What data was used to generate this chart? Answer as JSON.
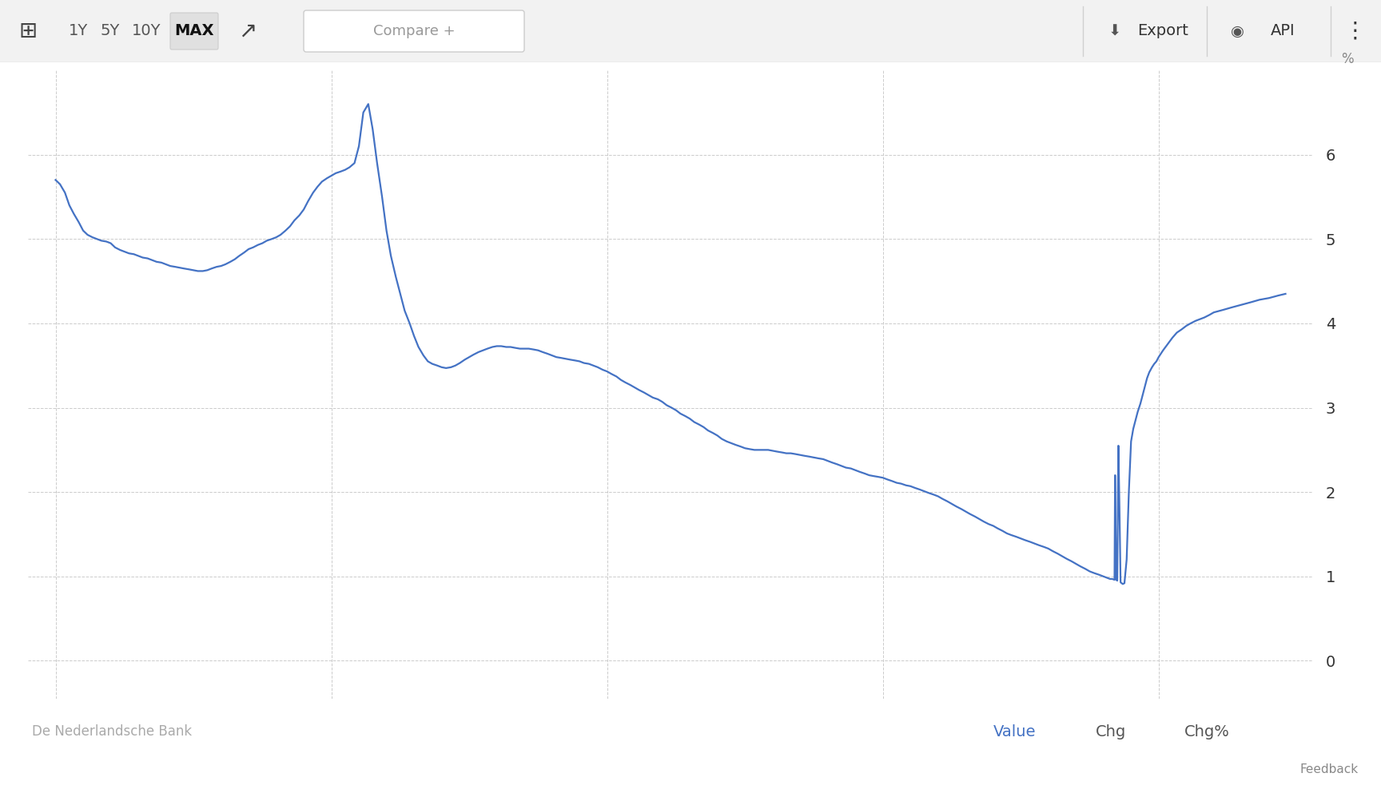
{
  "ylabel": "%",
  "source": "De Nederlandsche Bank",
  "line_color": "#4472C4",
  "bg_color": "#ffffff",
  "plot_bg_color": "#ffffff",
  "grid_color": "#cccccc",
  "toolbar_bg": "#f2f2f2",
  "x_start_year": 2002.5,
  "x_end_year": 2025.8,
  "ylim": [
    -0.45,
    7.0
  ],
  "yticks": [
    0,
    1,
    2,
    3,
    4,
    5,
    6
  ],
  "xticks": [
    2003,
    2008,
    2013,
    2018,
    2023
  ],
  "data": [
    [
      2003.0,
      5.7
    ],
    [
      2003.08,
      5.65
    ],
    [
      2003.17,
      5.55
    ],
    [
      2003.25,
      5.4
    ],
    [
      2003.33,
      5.3
    ],
    [
      2003.42,
      5.2
    ],
    [
      2003.5,
      5.1
    ],
    [
      2003.58,
      5.05
    ],
    [
      2003.67,
      5.02
    ],
    [
      2003.75,
      5.0
    ],
    [
      2003.83,
      4.98
    ],
    [
      2003.92,
      4.97
    ],
    [
      2004.0,
      4.95
    ],
    [
      2004.08,
      4.9
    ],
    [
      2004.17,
      4.87
    ],
    [
      2004.25,
      4.85
    ],
    [
      2004.33,
      4.83
    ],
    [
      2004.42,
      4.82
    ],
    [
      2004.5,
      4.8
    ],
    [
      2004.58,
      4.78
    ],
    [
      2004.67,
      4.77
    ],
    [
      2004.75,
      4.75
    ],
    [
      2004.83,
      4.73
    ],
    [
      2004.92,
      4.72
    ],
    [
      2005.0,
      4.7
    ],
    [
      2005.08,
      4.68
    ],
    [
      2005.17,
      4.67
    ],
    [
      2005.25,
      4.66
    ],
    [
      2005.33,
      4.65
    ],
    [
      2005.42,
      4.64
    ],
    [
      2005.5,
      4.63
    ],
    [
      2005.58,
      4.62
    ],
    [
      2005.67,
      4.62
    ],
    [
      2005.75,
      4.63
    ],
    [
      2005.83,
      4.65
    ],
    [
      2005.92,
      4.67
    ],
    [
      2006.0,
      4.68
    ],
    [
      2006.08,
      4.7
    ],
    [
      2006.17,
      4.73
    ],
    [
      2006.25,
      4.76
    ],
    [
      2006.33,
      4.8
    ],
    [
      2006.42,
      4.84
    ],
    [
      2006.5,
      4.88
    ],
    [
      2006.58,
      4.9
    ],
    [
      2006.67,
      4.93
    ],
    [
      2006.75,
      4.95
    ],
    [
      2006.83,
      4.98
    ],
    [
      2006.92,
      5.0
    ],
    [
      2007.0,
      5.02
    ],
    [
      2007.08,
      5.05
    ],
    [
      2007.17,
      5.1
    ],
    [
      2007.25,
      5.15
    ],
    [
      2007.33,
      5.22
    ],
    [
      2007.42,
      5.28
    ],
    [
      2007.5,
      5.35
    ],
    [
      2007.58,
      5.45
    ],
    [
      2007.67,
      5.55
    ],
    [
      2007.75,
      5.62
    ],
    [
      2007.83,
      5.68
    ],
    [
      2007.92,
      5.72
    ],
    [
      2008.0,
      5.75
    ],
    [
      2008.08,
      5.78
    ],
    [
      2008.17,
      5.8
    ],
    [
      2008.25,
      5.82
    ],
    [
      2008.33,
      5.85
    ],
    [
      2008.42,
      5.9
    ],
    [
      2008.5,
      6.1
    ],
    [
      2008.58,
      6.5
    ],
    [
      2008.67,
      6.6
    ],
    [
      2008.75,
      6.3
    ],
    [
      2008.83,
      5.9
    ],
    [
      2008.92,
      5.5
    ],
    [
      2009.0,
      5.1
    ],
    [
      2009.08,
      4.8
    ],
    [
      2009.17,
      4.55
    ],
    [
      2009.25,
      4.35
    ],
    [
      2009.33,
      4.15
    ],
    [
      2009.42,
      4.0
    ],
    [
      2009.5,
      3.85
    ],
    [
      2009.58,
      3.72
    ],
    [
      2009.67,
      3.62
    ],
    [
      2009.75,
      3.55
    ],
    [
      2009.83,
      3.52
    ],
    [
      2009.92,
      3.5
    ],
    [
      2010.0,
      3.48
    ],
    [
      2010.08,
      3.47
    ],
    [
      2010.17,
      3.48
    ],
    [
      2010.25,
      3.5
    ],
    [
      2010.33,
      3.53
    ],
    [
      2010.42,
      3.57
    ],
    [
      2010.5,
      3.6
    ],
    [
      2010.58,
      3.63
    ],
    [
      2010.67,
      3.66
    ],
    [
      2010.75,
      3.68
    ],
    [
      2010.83,
      3.7
    ],
    [
      2010.92,
      3.72
    ],
    [
      2011.0,
      3.73
    ],
    [
      2011.08,
      3.73
    ],
    [
      2011.17,
      3.72
    ],
    [
      2011.25,
      3.72
    ],
    [
      2011.33,
      3.71
    ],
    [
      2011.42,
      3.7
    ],
    [
      2011.5,
      3.7
    ],
    [
      2011.58,
      3.7
    ],
    [
      2011.67,
      3.69
    ],
    [
      2011.75,
      3.68
    ],
    [
      2011.83,
      3.66
    ],
    [
      2011.92,
      3.64
    ],
    [
      2012.0,
      3.62
    ],
    [
      2012.08,
      3.6
    ],
    [
      2012.17,
      3.59
    ],
    [
      2012.25,
      3.58
    ],
    [
      2012.33,
      3.57
    ],
    [
      2012.42,
      3.56
    ],
    [
      2012.5,
      3.55
    ],
    [
      2012.58,
      3.53
    ],
    [
      2012.67,
      3.52
    ],
    [
      2012.75,
      3.5
    ],
    [
      2012.83,
      3.48
    ],
    [
      2012.92,
      3.45
    ],
    [
      2013.0,
      3.43
    ],
    [
      2013.08,
      3.4
    ],
    [
      2013.17,
      3.37
    ],
    [
      2013.25,
      3.33
    ],
    [
      2013.33,
      3.3
    ],
    [
      2013.42,
      3.27
    ],
    [
      2013.5,
      3.24
    ],
    [
      2013.58,
      3.21
    ],
    [
      2013.67,
      3.18
    ],
    [
      2013.75,
      3.15
    ],
    [
      2013.83,
      3.12
    ],
    [
      2013.92,
      3.1
    ],
    [
      2014.0,
      3.07
    ],
    [
      2014.08,
      3.03
    ],
    [
      2014.17,
      3.0
    ],
    [
      2014.25,
      2.97
    ],
    [
      2014.33,
      2.93
    ],
    [
      2014.42,
      2.9
    ],
    [
      2014.5,
      2.87
    ],
    [
      2014.58,
      2.83
    ],
    [
      2014.67,
      2.8
    ],
    [
      2014.75,
      2.77
    ],
    [
      2014.83,
      2.73
    ],
    [
      2014.92,
      2.7
    ],
    [
      2015.0,
      2.67
    ],
    [
      2015.08,
      2.63
    ],
    [
      2015.17,
      2.6
    ],
    [
      2015.25,
      2.58
    ],
    [
      2015.33,
      2.56
    ],
    [
      2015.42,
      2.54
    ],
    [
      2015.5,
      2.52
    ],
    [
      2015.58,
      2.51
    ],
    [
      2015.67,
      2.5
    ],
    [
      2015.75,
      2.5
    ],
    [
      2015.83,
      2.5
    ],
    [
      2015.92,
      2.5
    ],
    [
      2016.0,
      2.49
    ],
    [
      2016.08,
      2.48
    ],
    [
      2016.17,
      2.47
    ],
    [
      2016.25,
      2.46
    ],
    [
      2016.33,
      2.46
    ],
    [
      2016.42,
      2.45
    ],
    [
      2016.5,
      2.44
    ],
    [
      2016.58,
      2.43
    ],
    [
      2016.67,
      2.42
    ],
    [
      2016.75,
      2.41
    ],
    [
      2016.83,
      2.4
    ],
    [
      2016.92,
      2.39
    ],
    [
      2017.0,
      2.37
    ],
    [
      2017.08,
      2.35
    ],
    [
      2017.17,
      2.33
    ],
    [
      2017.25,
      2.31
    ],
    [
      2017.33,
      2.29
    ],
    [
      2017.42,
      2.28
    ],
    [
      2017.5,
      2.26
    ],
    [
      2017.58,
      2.24
    ],
    [
      2017.67,
      2.22
    ],
    [
      2017.75,
      2.2
    ],
    [
      2017.83,
      2.19
    ],
    [
      2017.92,
      2.18
    ],
    [
      2018.0,
      2.17
    ],
    [
      2018.08,
      2.15
    ],
    [
      2018.17,
      2.13
    ],
    [
      2018.25,
      2.11
    ],
    [
      2018.33,
      2.1
    ],
    [
      2018.42,
      2.08
    ],
    [
      2018.5,
      2.07
    ],
    [
      2018.58,
      2.05
    ],
    [
      2018.67,
      2.03
    ],
    [
      2018.75,
      2.01
    ],
    [
      2018.83,
      1.99
    ],
    [
      2018.92,
      1.97
    ],
    [
      2019.0,
      1.95
    ],
    [
      2019.08,
      1.92
    ],
    [
      2019.17,
      1.89
    ],
    [
      2019.25,
      1.86
    ],
    [
      2019.33,
      1.83
    ],
    [
      2019.42,
      1.8
    ],
    [
      2019.5,
      1.77
    ],
    [
      2019.58,
      1.74
    ],
    [
      2019.67,
      1.71
    ],
    [
      2019.75,
      1.68
    ],
    [
      2019.83,
      1.65
    ],
    [
      2019.92,
      1.62
    ],
    [
      2020.0,
      1.6
    ],
    [
      2020.08,
      1.57
    ],
    [
      2020.17,
      1.54
    ],
    [
      2020.25,
      1.51
    ],
    [
      2020.33,
      1.49
    ],
    [
      2020.42,
      1.47
    ],
    [
      2020.5,
      1.45
    ],
    [
      2020.58,
      1.43
    ],
    [
      2020.67,
      1.41
    ],
    [
      2020.75,
      1.39
    ],
    [
      2020.83,
      1.37
    ],
    [
      2020.92,
      1.35
    ],
    [
      2021.0,
      1.33
    ],
    [
      2021.08,
      1.3
    ],
    [
      2021.17,
      1.27
    ],
    [
      2021.25,
      1.24
    ],
    [
      2021.33,
      1.21
    ],
    [
      2021.42,
      1.18
    ],
    [
      2021.5,
      1.15
    ],
    [
      2021.58,
      1.12
    ],
    [
      2021.67,
      1.09
    ],
    [
      2021.75,
      1.06
    ],
    [
      2021.83,
      1.04
    ],
    [
      2021.92,
      1.02
    ],
    [
      2022.0,
      1.0
    ],
    [
      2022.04,
      0.99
    ],
    [
      2022.08,
      0.98
    ],
    [
      2022.12,
      0.97
    ],
    [
      2022.16,
      0.97
    ],
    [
      2022.2,
      0.96
    ],
    [
      2022.21,
      2.2
    ],
    [
      2022.22,
      1.6
    ],
    [
      2022.23,
      0.96
    ],
    [
      2022.25,
      0.95
    ],
    [
      2022.27,
      2.55
    ],
    [
      2022.29,
      1.8
    ],
    [
      2022.31,
      0.93
    ],
    [
      2022.33,
      0.92
    ],
    [
      2022.35,
      0.91
    ],
    [
      2022.38,
      0.92
    ],
    [
      2022.42,
      1.2
    ],
    [
      2022.46,
      2.0
    ],
    [
      2022.5,
      2.6
    ],
    [
      2022.54,
      2.75
    ],
    [
      2022.58,
      2.85
    ],
    [
      2022.62,
      2.95
    ],
    [
      2022.67,
      3.05
    ],
    [
      2022.71,
      3.15
    ],
    [
      2022.75,
      3.25
    ],
    [
      2022.79,
      3.35
    ],
    [
      2022.83,
      3.42
    ],
    [
      2022.88,
      3.48
    ],
    [
      2022.92,
      3.52
    ],
    [
      2022.96,
      3.55
    ],
    [
      2023.0,
      3.6
    ],
    [
      2023.08,
      3.68
    ],
    [
      2023.17,
      3.76
    ],
    [
      2023.25,
      3.83
    ],
    [
      2023.33,
      3.89
    ],
    [
      2023.42,
      3.93
    ],
    [
      2023.5,
      3.97
    ],
    [
      2023.58,
      4.0
    ],
    [
      2023.67,
      4.03
    ],
    [
      2023.75,
      4.05
    ],
    [
      2023.83,
      4.07
    ],
    [
      2023.92,
      4.1
    ],
    [
      2024.0,
      4.13
    ],
    [
      2024.17,
      4.16
    ],
    [
      2024.33,
      4.19
    ],
    [
      2024.5,
      4.22
    ],
    [
      2024.67,
      4.25
    ],
    [
      2024.83,
      4.28
    ],
    [
      2025.0,
      4.3
    ],
    [
      2025.17,
      4.33
    ],
    [
      2025.3,
      4.35
    ]
  ],
  "toolbar_items": [
    "1Y",
    "5Y",
    "10Y",
    "MAX"
  ],
  "active_item": "MAX",
  "compare_text": "Compare +",
  "export_text": "Export",
  "api_text": "API",
  "value_text": "Value",
  "chg_text": "Chg",
  "chgpct_text": "Chg%",
  "feedback_text": "Feedback"
}
